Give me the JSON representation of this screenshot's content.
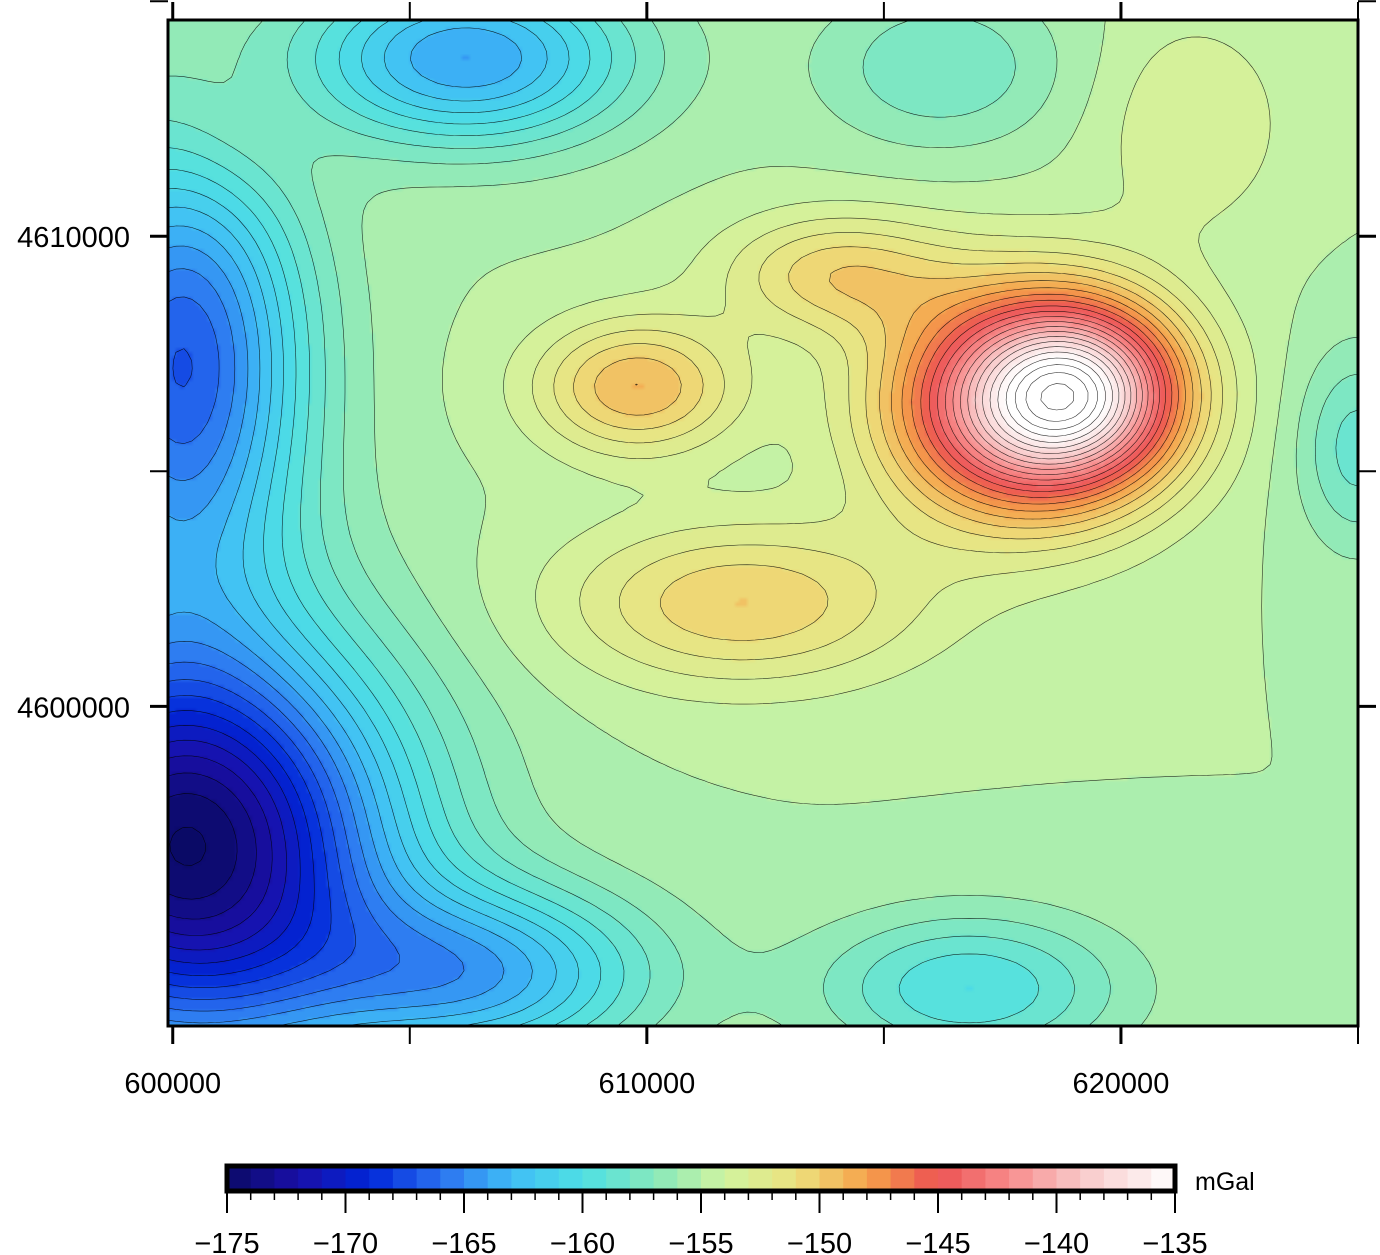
{
  "chart_data": {
    "type": "heatmap",
    "title": "",
    "xlabel": "",
    "ylabel": "",
    "xlim": [
      599900,
      625000
    ],
    "ylim": [
      4593200,
      4614600
    ],
    "x_ticks": [
      {
        "value": 600000,
        "label": "600000"
      },
      {
        "value": 610000,
        "label": "610000"
      },
      {
        "value": 620000,
        "label": "620000"
      }
    ],
    "y_ticks": [
      {
        "value": 4610000,
        "label": "4610000"
      },
      {
        "value": 4600000,
        "label": "4600000"
      }
    ],
    "x_minor_ticks": [
      600000,
      605000,
      610000,
      615000,
      620000,
      625000
    ],
    "y_minor_ticks": [
      4600000,
      4605000,
      4610000,
      4615000
    ],
    "contour_interval": 1,
    "colorbar": {
      "unit_label": "mGal",
      "range": [
        -175,
        -135
      ],
      "tick_labels": [
        "−175",
        "−170",
        "−165",
        "−160",
        "−155",
        "−150",
        "−145",
        "−140",
        "−135"
      ],
      "tick_values": [
        -175,
        -170,
        -165,
        -160,
        -155,
        -150,
        -145,
        -140,
        -135
      ],
      "color_stops": [
        {
          "value": -175,
          "color": "#0a0a66"
        },
        {
          "value": -172,
          "color": "#1a0fa8"
        },
        {
          "value": -169,
          "color": "#0026d8"
        },
        {
          "value": -166,
          "color": "#2a70f0"
        },
        {
          "value": -163,
          "color": "#40bdf6"
        },
        {
          "value": -160,
          "color": "#4ee0e4"
        },
        {
          "value": -157,
          "color": "#86e8bc"
        },
        {
          "value": -154,
          "color": "#d0f4a0"
        },
        {
          "value": -151,
          "color": "#ece27e"
        },
        {
          "value": -148,
          "color": "#f6a24a"
        },
        {
          "value": -145,
          "color": "#ec5252"
        },
        {
          "value": -142,
          "color": "#f88c8c"
        },
        {
          "value": -139,
          "color": "#f8c8c8"
        },
        {
          "value": -135,
          "color": "#ffffff"
        }
      ]
    },
    "anomaly_centers": [
      {
        "x": 617800,
        "y": 4606400,
        "value": -141.5,
        "sx": 2000,
        "sy": 1700
      },
      {
        "x": 619200,
        "y": 4606700,
        "value": -143,
        "sx": 1500,
        "sy": 1300
      },
      {
        "x": 609800,
        "y": 4606800,
        "value": -149,
        "sx": 1500,
        "sy": 1000
      },
      {
        "x": 612000,
        "y": 4602200,
        "value": -150,
        "sx": 2600,
        "sy": 1200
      },
      {
        "x": 614000,
        "y": 4609200,
        "value": -150.5,
        "sx": 1700,
        "sy": 900
      },
      {
        "x": 621500,
        "y": 4612400,
        "value": -153,
        "sx": 1400,
        "sy": 1600
      },
      {
        "x": 601200,
        "y": 4612300,
        "value": -153.5,
        "sx": 1300,
        "sy": 1300
      },
      {
        "x": 600300,
        "y": 4597000,
        "value": -175,
        "sx": 3000,
        "sy": 3100
      },
      {
        "x": 600200,
        "y": 4607300,
        "value": -167,
        "sx": 1800,
        "sy": 3400
      },
      {
        "x": 606200,
        "y": 4613800,
        "value": -164,
        "sx": 2400,
        "sy": 1300
      },
      {
        "x": 616200,
        "y": 4613600,
        "value": -158,
        "sx": 1800,
        "sy": 1200
      },
      {
        "x": 625000,
        "y": 4605500,
        "value": -158.5,
        "sx": 900,
        "sy": 1500
      },
      {
        "x": 616800,
        "y": 4594000,
        "value": -160,
        "sx": 2200,
        "sy": 1100
      },
      {
        "x": 606500,
        "y": 4594300,
        "value": -163,
        "sx": 2500,
        "sy": 1300
      }
    ],
    "background_value": -155,
    "grid": false
  }
}
